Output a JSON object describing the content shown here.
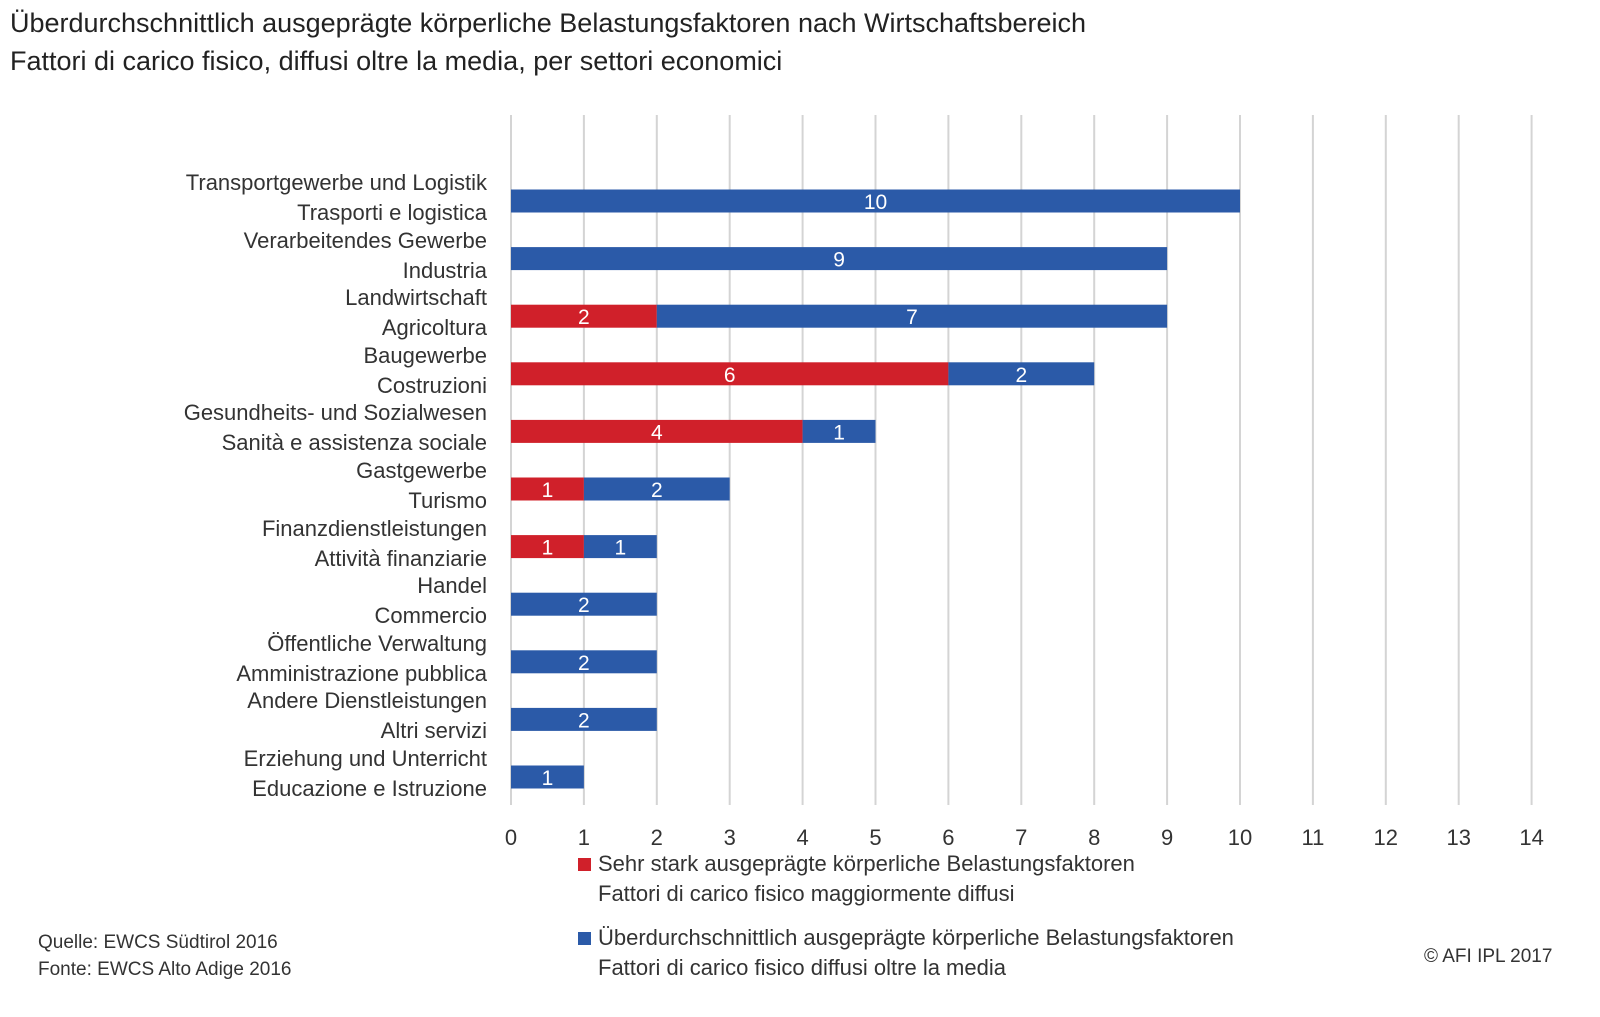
{
  "title": {
    "de": "Überdurchschnittlich ausgeprägte körperliche Belastungsfaktoren nach Wirtschaftsbereich",
    "it": "Fattori di carico fisico, diffusi oltre la media, per settori economici"
  },
  "chart_data": {
    "type": "bar",
    "orientation": "horizontal",
    "stacked": true,
    "categories": [
      {
        "de": "Transportgewerbe und Logistik",
        "it": "Trasporti e logistica"
      },
      {
        "de": "Verarbeitendes Gewerbe",
        "it": "Industria"
      },
      {
        "de": "Landwirtschaft",
        "it": "Agricoltura"
      },
      {
        "de": "Baugewerbe",
        "it": "Costruzioni"
      },
      {
        "de": "Gesundheits- und Sozialwesen",
        "it": "Sanità e assistenza sociale"
      },
      {
        "de": "Gastgewerbe",
        "it": "Turismo"
      },
      {
        "de": "Finanzdienstleistungen",
        "it": "Attività finanziarie"
      },
      {
        "de": "Handel",
        "it": "Commercio"
      },
      {
        "de": "Öffentliche Verwaltung",
        "it": "Amministrazione pubblica"
      },
      {
        "de": "Andere Dienstleistungen",
        "it": "Altri servizi"
      },
      {
        "de": "Erziehung und Unterricht",
        "it": "Educazione e Istruzione"
      }
    ],
    "series": [
      {
        "name_de": "Sehr stark ausgeprägte körperliche Belastungsfaktoren",
        "name_it": "Fattori di carico fisico maggiormente diffusi",
        "color": "#d0202a",
        "values": [
          0,
          0,
          2,
          6,
          4,
          1,
          1,
          0,
          0,
          0,
          0
        ]
      },
      {
        "name_de": "Überdurchschnittlich ausgeprägte körperliche Belastungsfaktoren",
        "name_it": "Fattori di carico fisico diffusi oltre la media",
        "color": "#2b5aa8",
        "values": [
          10,
          9,
          7,
          2,
          1,
          2,
          1,
          2,
          2,
          2,
          1
        ]
      }
    ],
    "xlim": [
      0,
      14
    ],
    "xticks": [
      0,
      1,
      2,
      3,
      4,
      5,
      6,
      7,
      8,
      9,
      10,
      11,
      12,
      13,
      14
    ],
    "grid": "vertical",
    "legend_position": "bottom"
  },
  "footer": {
    "source_de": "Quelle: EWCS Südtirol 2016",
    "source_it": "Fonte: EWCS Alto Adige 2016",
    "copyright": "© AFI IPL 2017"
  }
}
